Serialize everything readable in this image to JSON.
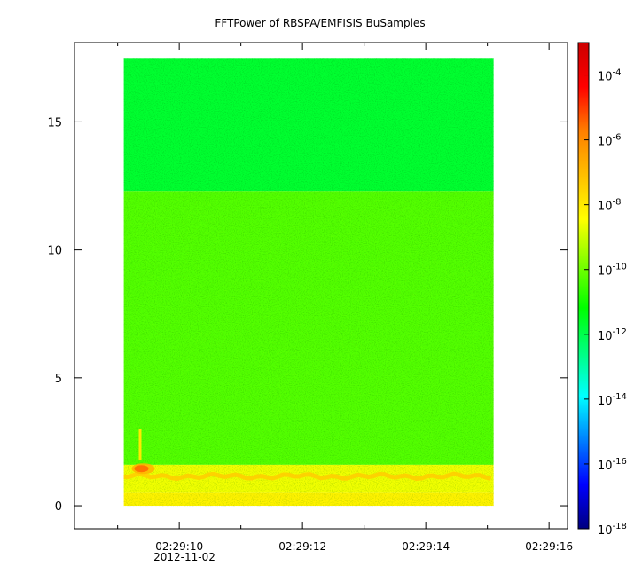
{
  "chart_data": {
    "type": "heatmap",
    "title": "FFTPower of RBSPA/EMFISIS  BuSamples",
    "x": {
      "date_label": "2012-11-02",
      "range": [
        "02:29:08.3",
        "02:29:16.3"
      ],
      "data_range": [
        "02:29:09.1",
        "02:29:15.1"
      ],
      "major_ticks": [
        "02:29:10",
        "02:29:12",
        "02:29:14",
        "02:29:16"
      ],
      "minor_ticks": [
        "02:29:09",
        "02:29:11",
        "02:29:13",
        "02:29:15"
      ]
    },
    "y": {
      "range": [
        -0.9,
        18.1
      ],
      "data_range": [
        0,
        17.5
      ],
      "ticks": [
        0,
        5,
        10,
        15
      ]
    },
    "colorbar": {
      "scale": "log",
      "range": [
        1e-18,
        0.001
      ],
      "tick_exponents": [
        -18,
        -16,
        -14,
        -12,
        -10,
        -8,
        -6,
        -4
      ],
      "tick_base": "10",
      "colormap": [
        "#00007f",
        "#0000ff",
        "#007fff",
        "#00ffff",
        "#00ff7f",
        "#00ff00",
        "#7fff00",
        "#ffff00",
        "#ffbf00",
        "#ff7f00",
        "#ff0000",
        "#cc0000"
      ]
    },
    "bands": [
      {
        "y_from": 12.3,
        "y_to": 17.5,
        "log_power": -11.7
      },
      {
        "y_from": 1.6,
        "y_to": 12.3,
        "log_power": -10.3
      },
      {
        "y_from": 0.5,
        "y_to": 1.6,
        "log_power": -8.6
      },
      {
        "y_from": 0,
        "y_to": 0.5,
        "log_power": -8.2
      }
    ],
    "features": [
      {
        "kind": "line",
        "y": 1.15,
        "log_power": -7.4
      },
      {
        "kind": "blob",
        "x": "02:29:09.3",
        "y": 1.45,
        "log_power": -5.6
      }
    ]
  }
}
